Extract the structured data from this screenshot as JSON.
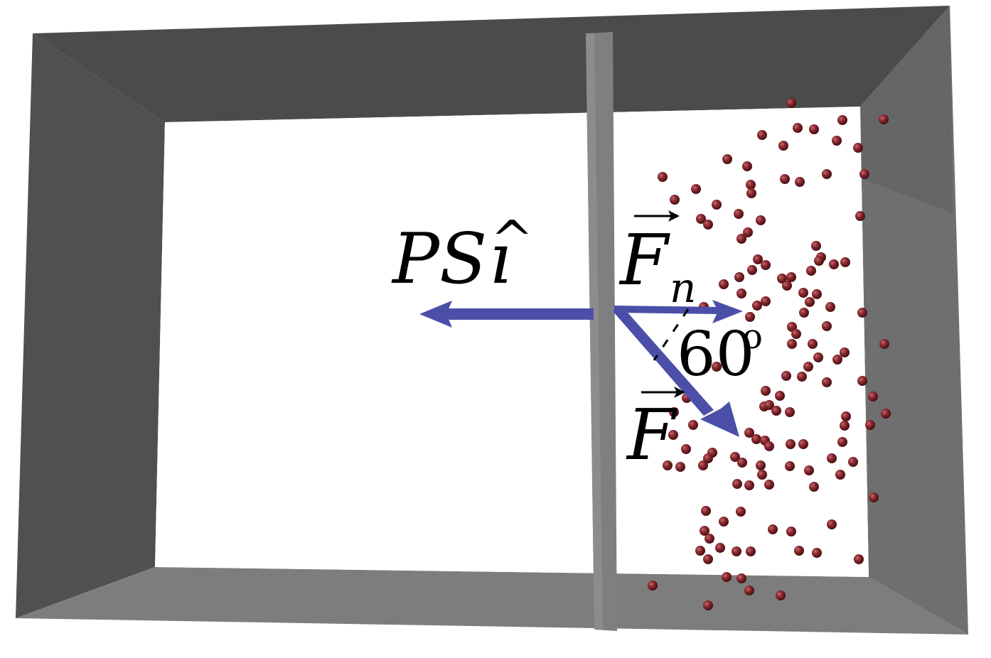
{
  "labels": {
    "pressure_force": {
      "main": "PS",
      "unit_vector": "ı",
      "hat": "^"
    },
    "normal_force": {
      "main": "F",
      "subscript": "n"
    },
    "particle_force": {
      "main": "F"
    },
    "angle": {
      "value": "60",
      "degree": "o"
    }
  },
  "colors": {
    "box_dark": "#4a4a4a",
    "box_mid": "#5c5c5c",
    "box_light": "#7a7a7a",
    "piston": "#7f7f7f",
    "arrow": "#4b4fa8",
    "particle": "#7a1f24"
  }
}
